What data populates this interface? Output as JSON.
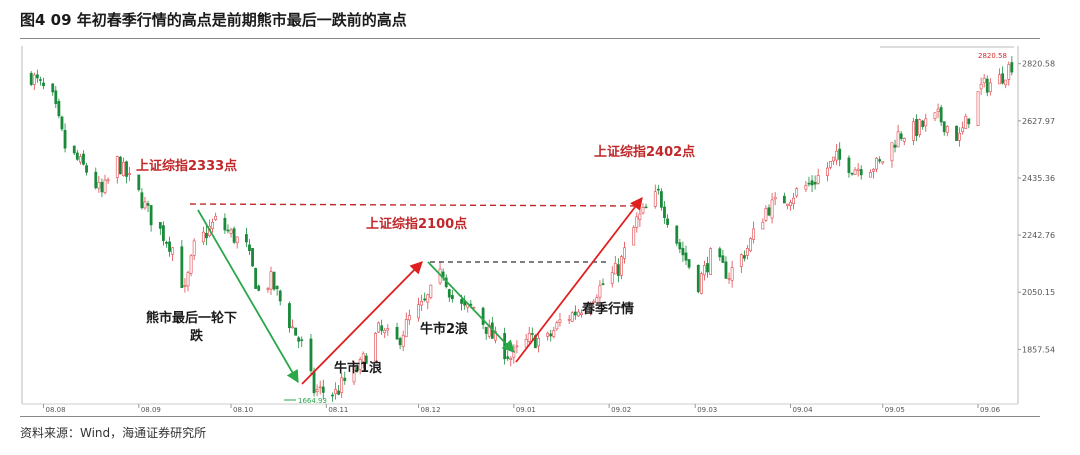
{
  "header": {
    "title": "图4  09 年初春季行情的高点是前期熊市最后一跌前的高点"
  },
  "footer": {
    "source": "资料来源：Wind，海通证券研究所"
  },
  "colors": {
    "up": "#e0474c",
    "down": "#1a8a3a",
    "arrow_red": "#e02020",
    "arrow_green": "#2aa84a",
    "dash": "#c0282a",
    "annotation_red": "#c0282a"
  },
  "chart_data": {
    "type": "candlestick",
    "y_ticks": [
      "2820.58",
      "2627.97",
      "2435.36",
      "2242.76",
      "2050.15",
      "1857.54"
    ],
    "y_tick_values": [
      2820.58,
      2627.97,
      2435.36,
      2242.76,
      2050.15,
      1857.54
    ],
    "ylim": [
      1680,
      2860
    ],
    "x_ticks": [
      "08.08",
      "08.09",
      "08.10",
      "08.11",
      "08.12",
      "09.01",
      "09.02",
      "09.03",
      "09.04",
      "09.05",
      "09.06"
    ],
    "x_tick_dates": [
      "2008-08-01",
      "2008-09-01",
      "2008-10-01",
      "2008-11-01",
      "2008-12-01",
      "2009-01-01",
      "2009-02-01",
      "2009-03-01",
      "2009-04-01",
      "2009-05-01",
      "2009-06-01"
    ],
    "xlim": [
      "2008-07-25",
      "2009-06-14"
    ],
    "close_path": [
      [
        "2008-07-28",
        2780
      ],
      [
        "2008-08-04",
        2700
      ],
      [
        "2008-08-08",
        2540
      ],
      [
        "2008-08-15",
        2460
      ],
      [
        "2008-08-20",
        2380
      ],
      [
        "2008-08-25",
        2490
      ],
      [
        "2008-09-01",
        2380
      ],
      [
        "2008-09-05",
        2300
      ],
      [
        "2008-09-12",
        2200
      ],
      [
        "2008-09-16",
        2050
      ],
      [
        "2008-09-19",
        2200
      ],
      [
        "2008-09-26",
        2290
      ],
      [
        "2008-10-06",
        2200
      ],
      [
        "2008-10-10",
        2050
      ],
      [
        "2008-10-14",
        2090
      ],
      [
        "2008-10-20",
        1950
      ],
      [
        "2008-10-24",
        1870
      ],
      [
        "2008-10-28",
        1720
      ],
      [
        "2008-11-04",
        1710
      ],
      [
        "2008-11-07",
        1750
      ],
      [
        "2008-11-12",
        1800
      ],
      [
        "2008-11-18",
        1920
      ],
      [
        "2008-11-24",
        1880
      ],
      [
        "2008-11-28",
        1960
      ],
      [
        "2008-12-03",
        2010
      ],
      [
        "2008-12-09",
        2120
      ],
      [
        "2008-12-12",
        2030
      ],
      [
        "2008-12-16",
        1990
      ],
      [
        "2008-12-19",
        2000
      ],
      [
        "2008-12-25",
        1900
      ],
      [
        "2008-12-31",
        1830
      ],
      [
        "2009-01-06",
        1890
      ],
      [
        "2009-01-12",
        1890
      ],
      [
        "2009-01-16",
        1950
      ],
      [
        "2009-01-22",
        1990
      ],
      [
        "2009-02-04",
        2130
      ],
      [
        "2009-02-10",
        2290
      ],
      [
        "2009-02-17",
        2380
      ],
      [
        "2009-02-24",
        2200
      ],
      [
        "2009-03-02",
        2080
      ],
      [
        "2009-03-06",
        2170
      ],
      [
        "2009-03-12",
        2110
      ],
      [
        "2009-03-18",
        2200
      ],
      [
        "2009-03-24",
        2330
      ],
      [
        "2009-03-31",
        2370
      ],
      [
        "2009-04-08",
        2420
      ],
      [
        "2009-04-16",
        2500
      ],
      [
        "2009-04-22",
        2470
      ],
      [
        "2009-04-30",
        2480
      ],
      [
        "2009-05-06",
        2580
      ],
      [
        "2009-05-12",
        2600
      ],
      [
        "2009-05-19",
        2640
      ],
      [
        "2009-05-26",
        2570
      ],
      [
        "2009-06-02",
        2740
      ],
      [
        "2009-06-08",
        2770
      ],
      [
        "2009-06-12",
        2820
      ]
    ],
    "annotations": {
      "a2333": "上证综指2333点",
      "a2402": "上证综指2402点",
      "a2100": "上证综指2100点",
      "bear_line1": "熊市最后一轮下",
      "bear_line2": "跌",
      "bull1": "牛市1浪",
      "bull2": "牛市2浪",
      "spring": "春季行情",
      "low_label": "1664.93",
      "high_label": "2820.58"
    }
  }
}
